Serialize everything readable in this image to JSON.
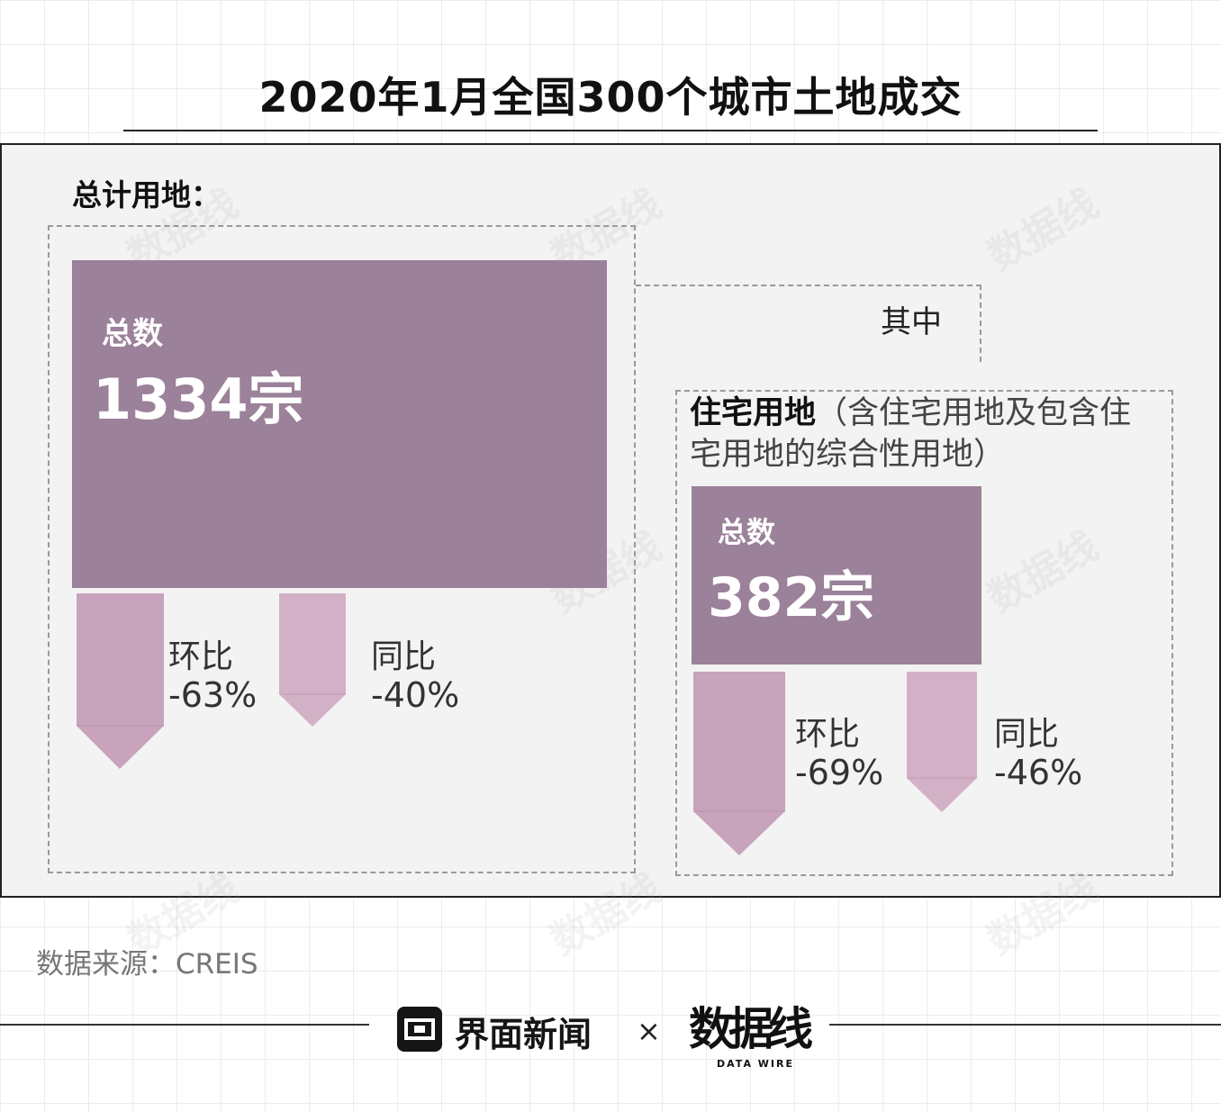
{
  "title": "2020年1月全国300个城市土地成交",
  "total_land": {
    "heading": "总计用地：",
    "total_label": "总数",
    "total_value": "1334宗",
    "mom": {
      "label": "环比",
      "value": "-63%",
      "fraction": -0.63
    },
    "yoy": {
      "label": "同比",
      "value": "-40%",
      "fraction": -0.4
    }
  },
  "bracket_label": "其中",
  "residential_land": {
    "heading": "住宅用地",
    "heading_note": "（含住宅用地及包含住宅用地的综合性用地）",
    "total_label": "总数",
    "total_value": "382宗",
    "mom": {
      "label": "环比",
      "value": "-69%",
      "fraction": -0.69
    },
    "yoy": {
      "label": "同比",
      "value": "-46%",
      "fraction": -0.46
    }
  },
  "source": "数据来源：CREIS",
  "footer": {
    "brand": "界面新闻",
    "separator": "×",
    "partner_mark": "数据线",
    "partner_sub": "DATA WIRE"
  },
  "colors": {
    "total_box": "#9b8199",
    "bar_mom": "#c7a3bc",
    "bar_yoy": "#d2b1c6",
    "panel_bg": "#f3f3f3"
  }
}
